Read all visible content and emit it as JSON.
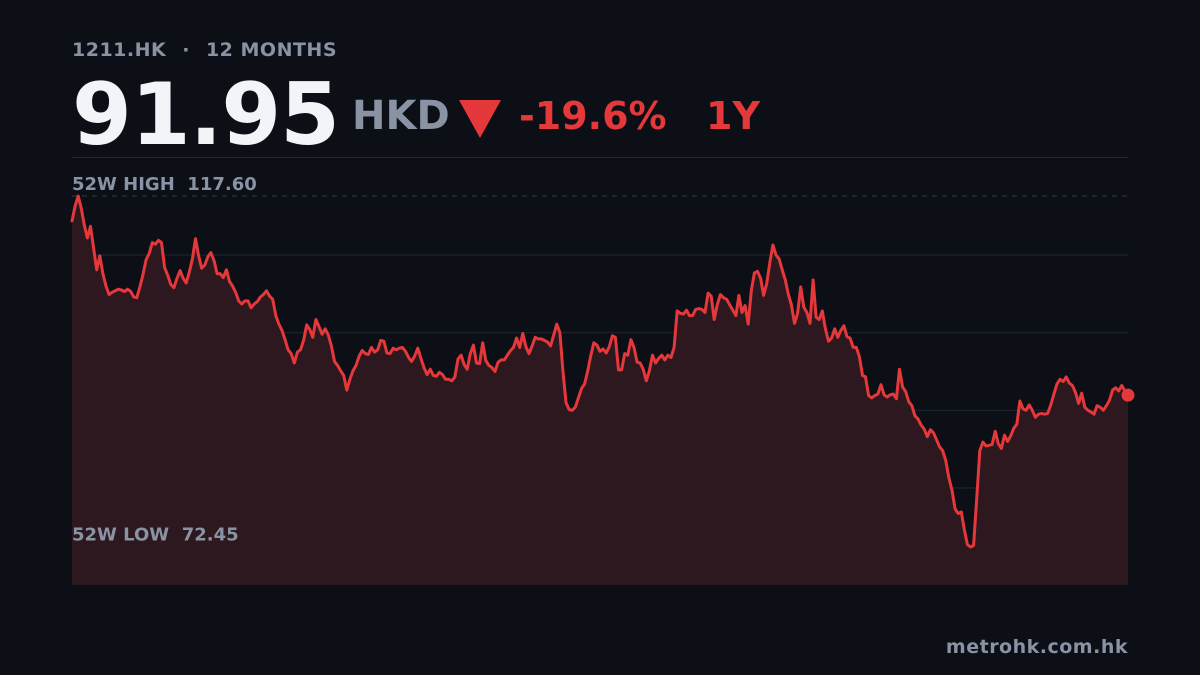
{
  "header": {
    "ticker": "1211.HK",
    "separator": "·",
    "range_label": "12 MONTHS"
  },
  "quote": {
    "price": "91.95",
    "currency": "HKD",
    "direction": "down",
    "change": "-19.6%",
    "period": "1Y"
  },
  "colors": {
    "background": "#0c0f16",
    "line": "#e5383b",
    "fill": "#2c181e",
    "muted_text": "#8a93a3",
    "price_text": "#f2f4f8"
  },
  "chart_data": {
    "type": "area",
    "title": "",
    "xlabel": "",
    "ylabel": "",
    "ylim": [
      67.5,
      122.5
    ],
    "grid": "horizontal",
    "high": {
      "label": "52W HIGH",
      "value": 117.6
    },
    "low": {
      "label": "52W LOW",
      "value": 72.45
    },
    "series": [
      {
        "values": [
          114.4,
          116.3,
          117.6,
          116.0,
          113.8,
          112.2,
          113.7,
          110.9,
          108.1,
          109.9,
          107.6,
          106.0,
          104.9,
          105.2,
          105.4,
          105.6,
          105.5,
          105.3,
          105.6,
          105.3,
          104.6,
          104.5,
          105.9,
          107.5,
          109.4,
          110.2,
          111.6,
          111.4,
          111.9,
          111.6,
          108.4,
          107.4,
          106.2,
          105.8,
          107.0,
          108.0,
          107.0,
          106.4,
          107.8,
          109.5,
          112.1,
          109.9,
          108.3,
          108.7,
          109.8,
          110.3,
          109.3,
          107.6,
          107.6,
          107.1,
          108.1,
          106.6,
          106.0,
          105.2,
          104.1,
          103.7,
          104.1,
          104.1,
          103.2,
          103.7,
          104.0,
          104.6,
          104.9,
          105.4,
          104.7,
          104.3,
          102.2,
          101.1,
          100.3,
          99.1,
          97.8,
          97.3,
          96.1,
          97.5,
          97.8,
          99.0,
          101.0,
          100.4,
          99.4,
          101.7,
          100.8,
          99.8,
          100.5,
          99.7,
          98.3,
          96.3,
          95.8,
          95.1,
          94.5,
          92.6,
          94.0,
          95.1,
          95.8,
          97.0,
          97.7,
          97.3,
          97.2,
          98.1,
          97.5,
          97.8,
          99.0,
          98.9,
          97.4,
          97.3,
          98.0,
          97.8,
          98.0,
          98.1,
          97.6,
          96.8,
          96.3,
          97.0,
          98.0,
          96.7,
          95.5,
          94.6,
          95.3,
          94.5,
          94.4,
          94.9,
          94.6,
          94.0,
          94.0,
          93.8,
          94.3,
          96.6,
          97.1,
          95.9,
          95.3,
          97.3,
          98.4,
          96.1,
          96.0,
          98.7,
          96.4,
          95.8,
          95.5,
          95.0,
          96.2,
          96.5,
          96.5,
          97.1,
          97.7,
          98.1,
          99.3,
          98.1,
          99.9,
          98.2,
          97.3,
          98.3,
          99.4,
          99.2,
          99.2,
          99.0,
          98.8,
          98.3,
          99.7,
          101.1,
          100.0,
          95.1,
          91.0,
          90.1,
          90.0,
          90.4,
          91.6,
          92.8,
          93.4,
          95.0,
          97.0,
          98.7,
          98.4,
          97.6,
          97.9,
          97.4,
          98.2,
          99.6,
          99.4,
          95.2,
          95.2,
          97.3,
          97.1,
          99.1,
          98.1,
          96.2,
          96.1,
          95.3,
          93.8,
          95.1,
          97.1,
          96.1,
          96.7,
          97.1,
          96.5,
          97.1,
          96.8,
          98.1,
          102.8,
          102.5,
          102.4,
          102.9,
          102.2,
          102.2,
          103.0,
          103.1,
          103.0,
          102.6,
          105.1,
          104.7,
          101.7,
          103.6,
          104.9,
          104.5,
          104.3,
          103.6,
          102.9,
          102.2,
          104.8,
          102.6,
          103.5,
          101.1,
          105.4,
          107.7,
          107.9,
          107.0,
          104.8,
          106.3,
          109.0,
          111.3,
          110.0,
          109.5,
          108.1,
          106.8,
          104.9,
          103.6,
          101.2,
          102.5,
          105.9,
          103.3,
          102.6,
          101.2,
          106.8,
          102.0,
          101.7,
          102.8,
          100.5,
          98.9,
          99.3,
          100.5,
          99.4,
          100.3,
          100.9,
          99.5,
          99.3,
          98.1,
          98.1,
          96.9,
          94.5,
          94.3,
          91.9,
          91.6,
          91.9,
          92.1,
          93.3,
          92.0,
          91.7,
          92.0,
          92.1,
          91.5,
          95.3,
          93.0,
          92.4,
          91.1,
          90.6,
          89.3,
          88.9,
          88.1,
          87.6,
          86.6,
          87.5,
          87.1,
          86.2,
          85.3,
          84.8,
          83.5,
          81.3,
          79.7,
          77.3,
          76.7,
          76.9,
          74.6,
          72.7,
          72.4,
          72.6,
          78.6,
          84.8,
          85.9,
          85.4,
          85.5,
          85.6,
          87.3,
          85.7,
          85.1,
          86.8,
          86.0,
          86.7,
          87.7,
          88.2,
          91.2,
          90.2,
          90.0,
          90.7,
          90.0,
          89.1,
          89.5,
          89.6,
          89.5,
          89.6,
          90.7,
          92.1,
          93.4,
          94.0,
          93.7,
          94.3,
          93.5,
          93.2,
          92.3,
          90.9,
          92.2,
          90.4,
          90.0,
          89.8,
          89.5,
          90.6,
          90.4,
          90.0,
          90.6,
          91.3,
          92.6,
          92.9,
          92.5,
          93.2,
          92.5,
          91.95
        ]
      }
    ],
    "last_value": 91.95
  },
  "footer": {
    "source": "metrohk.com.hk"
  }
}
